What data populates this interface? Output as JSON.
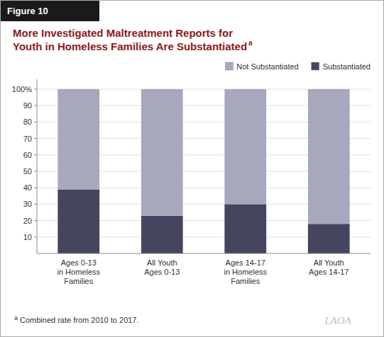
{
  "chart_data": {
    "type": "bar",
    "stacked": true,
    "title": "More Investigated Maltreatment Reports for\nYouth in Homeless Families Are Substantiated",
    "categories": [
      "Ages 0-13\nin Homeless\nFamilies",
      "All Youth\nAges 0-13",
      "Ages 14-17\nin Homeless\nFamilies",
      "All Youth\nAges 14-17"
    ],
    "series": [
      {
        "name": "Substantiated",
        "color": "#454560",
        "values": [
          39,
          23,
          30,
          18
        ]
      },
      {
        "name": "Not Substantiated",
        "color": "#a8a8bc",
        "values": [
          61,
          77,
          70,
          82
        ]
      }
    ],
    "ylim": [
      0,
      106
    ],
    "yticks": [
      10,
      20,
      30,
      40,
      50,
      60,
      70,
      80,
      90,
      {
        "value": 100,
        "label": "100%"
      }
    ],
    "grid": true,
    "legend": "upper right",
    "annotations": [
      "Figure 10",
      "a",
      "a",
      "Combined rate from 2010 to 2017.",
      "LAOA"
    ]
  }
}
